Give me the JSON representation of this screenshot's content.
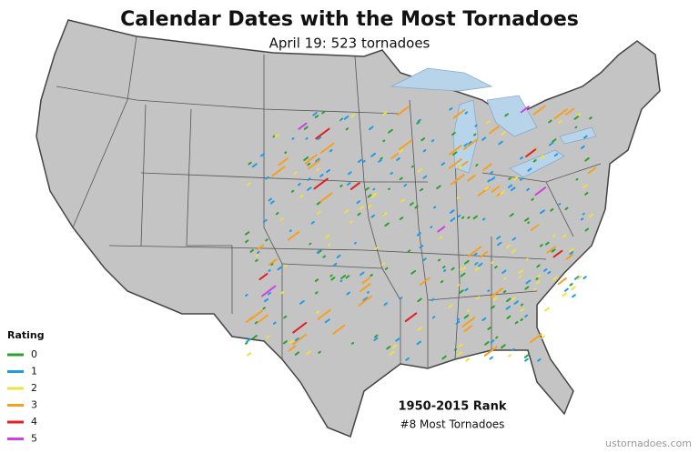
{
  "header": {
    "title": "Calendar Dates with the Most Tornadoes",
    "subtitle": "April 19: 523 tornadoes"
  },
  "legend": {
    "title": "Rating",
    "items": [
      {
        "label": "0",
        "color": "#2ca02c"
      },
      {
        "label": "1",
        "color": "#1f9be8"
      },
      {
        "label": "2",
        "color": "#f0e040"
      },
      {
        "label": "3",
        "color": "#f5a020"
      },
      {
        "label": "4",
        "color": "#e02020"
      },
      {
        "label": "5",
        "color": "#d040e0"
      }
    ]
  },
  "rank": {
    "title": "1950-2015 Rank",
    "text": "#8 Most Tornadoes"
  },
  "credit": "ustornadoes.com"
}
